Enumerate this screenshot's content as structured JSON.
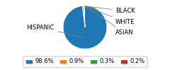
{
  "chart_data": {
    "type": "pie",
    "categories": [
      "HISPANIC",
      "BLACK",
      "WHITE",
      "ASIAN"
    ],
    "values": [
      98.6,
      0.9,
      0.3,
      0.2
    ],
    "value_labels": [
      "98.6%",
      "0.9%",
      "0.3%",
      "0.2%"
    ],
    "legend": "lower center"
  }
}
